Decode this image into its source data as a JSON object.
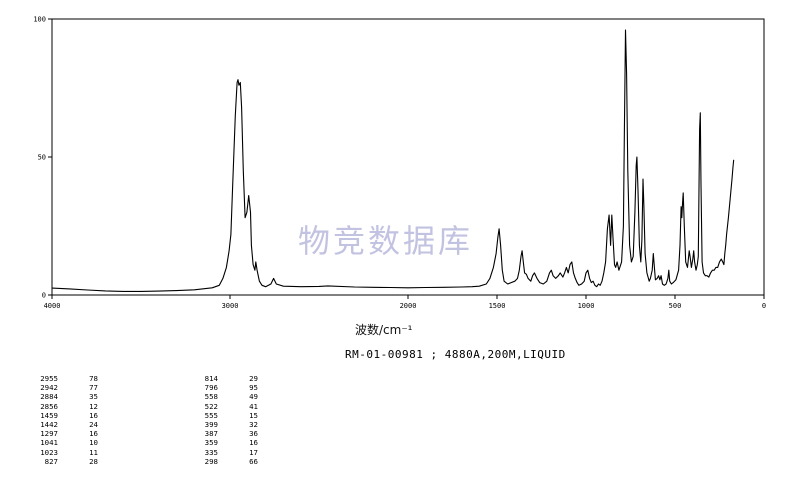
{
  "chart_data": {
    "type": "line",
    "title": "",
    "xlabel": "波数/cm⁻¹",
    "ylabel": "",
    "x_reversed": true,
    "xlim": [
      4000,
      0
    ],
    "ylim": [
      0,
      100
    ],
    "x_ticks": [
      "4000",
      "3000",
      "2000",
      "1500",
      "1000",
      "500",
      "0"
    ],
    "y_ticks": [
      "0",
      "50",
      "100"
    ],
    "grid": false,
    "series": [
      {
        "points": [
          [
            4000,
            2.5
          ],
          [
            3900,
            2.2
          ],
          [
            3800,
            1.8
          ],
          [
            3700,
            1.5
          ],
          [
            3600,
            1.3
          ],
          [
            3500,
            1.3
          ],
          [
            3400,
            1.4
          ],
          [
            3300,
            1.6
          ],
          [
            3200,
            1.9
          ],
          [
            3100,
            2.6
          ],
          [
            3060,
            3.5
          ],
          [
            3040,
            6
          ],
          [
            3020,
            10
          ],
          [
            3005,
            16
          ],
          [
            2995,
            22
          ],
          [
            2985,
            40
          ],
          [
            2970,
            65
          ],
          [
            2960,
            77
          ],
          [
            2955,
            78
          ],
          [
            2950,
            76
          ],
          [
            2942,
            77
          ],
          [
            2935,
            68
          ],
          [
            2925,
            45
          ],
          [
            2915,
            28
          ],
          [
            2905,
            30
          ],
          [
            2895,
            36
          ],
          [
            2885,
            30
          ],
          [
            2880,
            18
          ],
          [
            2870,
            11
          ],
          [
            2860,
            9
          ],
          [
            2855,
            12
          ],
          [
            2848,
            9
          ],
          [
            2835,
            5
          ],
          [
            2820,
            3.5
          ],
          [
            2800,
            3
          ],
          [
            2770,
            4
          ],
          [
            2755,
            6
          ],
          [
            2740,
            4
          ],
          [
            2700,
            3.2
          ],
          [
            2600,
            3
          ],
          [
            2500,
            3.1
          ],
          [
            2450,
            3.3
          ],
          [
            2300,
            2.9
          ],
          [
            2200,
            2.8
          ],
          [
            2100,
            2.7
          ],
          [
            2000,
            2.6
          ],
          [
            1900,
            2.7
          ],
          [
            1800,
            2.8
          ],
          [
            1700,
            2.9
          ],
          [
            1640,
            3.0
          ],
          [
            1600,
            3.2
          ],
          [
            1560,
            4
          ],
          [
            1540,
            6
          ],
          [
            1520,
            10
          ],
          [
            1505,
            15
          ],
          [
            1495,
            21
          ],
          [
            1488,
            24
          ],
          [
            1480,
            18
          ],
          [
            1470,
            9
          ],
          [
            1460,
            5
          ],
          [
            1440,
            4
          ],
          [
            1420,
            4.5
          ],
          [
            1400,
            5
          ],
          [
            1385,
            6
          ],
          [
            1375,
            9
          ],
          [
            1365,
            14
          ],
          [
            1359,
            16
          ],
          [
            1352,
            12
          ],
          [
            1345,
            8
          ],
          [
            1335,
            7.5
          ],
          [
            1325,
            6
          ],
          [
            1310,
            5
          ],
          [
            1300,
            7
          ],
          [
            1290,
            8
          ],
          [
            1275,
            6
          ],
          [
            1260,
            4.5
          ],
          [
            1240,
            4
          ],
          [
            1220,
            5
          ],
          [
            1205,
            8
          ],
          [
            1195,
            9
          ],
          [
            1185,
            7
          ],
          [
            1170,
            6
          ],
          [
            1155,
            7
          ],
          [
            1145,
            8
          ],
          [
            1130,
            6.5
          ],
          [
            1120,
            8
          ],
          [
            1110,
            10
          ],
          [
            1100,
            8
          ],
          [
            1090,
            11
          ],
          [
            1080,
            12
          ],
          [
            1070,
            8
          ],
          [
            1060,
            6
          ],
          [
            1050,
            4.5
          ],
          [
            1040,
            3.5
          ],
          [
            1025,
            4
          ],
          [
            1010,
            5
          ],
          [
            1000,
            8
          ],
          [
            990,
            9
          ],
          [
            980,
            6
          ],
          [
            970,
            4.5
          ],
          [
            960,
            5
          ],
          [
            950,
            3.5
          ],
          [
            940,
            3.0
          ],
          [
            930,
            4
          ],
          [
            920,
            3.5
          ],
          [
            910,
            5
          ],
          [
            900,
            8
          ],
          [
            890,
            12
          ],
          [
            880,
            24
          ],
          [
            870,
            29
          ],
          [
            862,
            18
          ],
          [
            855,
            29
          ],
          [
            848,
            20
          ],
          [
            840,
            11
          ],
          [
            833,
            10
          ],
          [
            825,
            12
          ],
          [
            815,
            9
          ],
          [
            800,
            12
          ],
          [
            790,
            25
          ],
          [
            784,
            60
          ],
          [
            778,
            96
          ],
          [
            772,
            80
          ],
          [
            765,
            45
          ],
          [
            755,
            18
          ],
          [
            745,
            12
          ],
          [
            735,
            14
          ],
          [
            725,
            30
          ],
          [
            718,
            47
          ],
          [
            714,
            50
          ],
          [
            708,
            38
          ],
          [
            700,
            18
          ],
          [
            692,
            12
          ],
          [
            686,
            20
          ],
          [
            680,
            42
          ],
          [
            675,
            32
          ],
          [
            668,
            15
          ],
          [
            658,
            8
          ],
          [
            645,
            5
          ],
          [
            638,
            6
          ],
          [
            628,
            9
          ],
          [
            622,
            15
          ],
          [
            616,
            10
          ],
          [
            610,
            5.5
          ],
          [
            600,
            6
          ],
          [
            592,
            7
          ],
          [
            585,
            5.5
          ],
          [
            578,
            7
          ],
          [
            570,
            4
          ],
          [
            560,
            3.5
          ],
          [
            550,
            4
          ],
          [
            540,
            6
          ],
          [
            535,
            9
          ],
          [
            530,
            5
          ],
          [
            520,
            4
          ],
          [
            510,
            4.5
          ],
          [
            495,
            5.5
          ],
          [
            480,
            9
          ],
          [
            472,
            18
          ],
          [
            466,
            32
          ],
          [
            462,
            28
          ],
          [
            458,
            33
          ],
          [
            454,
            37
          ],
          [
            448,
            25
          ],
          [
            440,
            12
          ],
          [
            430,
            10
          ],
          [
            420,
            16
          ],
          [
            415,
            14
          ],
          [
            408,
            10
          ],
          [
            400,
            13
          ],
          [
            395,
            16
          ],
          [
            390,
            12
          ],
          [
            382,
            9
          ],
          [
            375,
            11
          ],
          [
            369,
            14
          ],
          [
            362,
            60
          ],
          [
            358,
            66
          ],
          [
            354,
            40
          ],
          [
            348,
            12
          ],
          [
            340,
            8
          ],
          [
            330,
            7
          ],
          [
            320,
            7
          ],
          [
            310,
            6.5
          ],
          [
            300,
            8
          ],
          [
            290,
            9
          ],
          [
            280,
            9
          ],
          [
            270,
            10
          ],
          [
            260,
            10
          ],
          [
            250,
            12
          ],
          [
            240,
            13
          ],
          [
            232,
            12
          ],
          [
            225,
            11
          ],
          [
            220,
            15
          ],
          [
            215,
            18
          ],
          [
            210,
            22
          ],
          [
            200,
            28
          ],
          [
            190,
            35
          ],
          [
            180,
            42
          ],
          [
            175,
            46
          ],
          [
            170,
            49
          ]
        ]
      }
    ],
    "peak_table": {
      "left": [
        [
          "2955",
          "78"
        ],
        [
          "2942",
          "77"
        ],
        [
          "2884",
          "35"
        ],
        [
          "2856",
          "12"
        ],
        [
          "1459",
          "16"
        ],
        [
          "1442",
          "24"
        ],
        [
          "1297",
          "16"
        ],
        [
          "1041",
          "10"
        ],
        [
          "1023",
          "11"
        ],
        [
          "827",
          "28"
        ]
      ],
      "right": [
        [
          "814",
          "29"
        ],
        [
          "796",
          "95"
        ],
        [
          "558",
          "49"
        ],
        [
          "522",
          "41"
        ],
        [
          "555",
          "15"
        ],
        [
          "399",
          "32"
        ],
        [
          "387",
          "36"
        ],
        [
          "359",
          "16"
        ],
        [
          "335",
          "17"
        ],
        [
          "298",
          "66"
        ]
      ]
    }
  },
  "labels": {
    "xlabel": "波数/cm⁻¹",
    "caption": "RM-01-00981 ; 4880A,200M,LIQUID",
    "watermark": "物竞数据库"
  },
  "colors": {
    "line": "#000000",
    "axis": "#000000",
    "watermark": "#b8b8dc"
  }
}
